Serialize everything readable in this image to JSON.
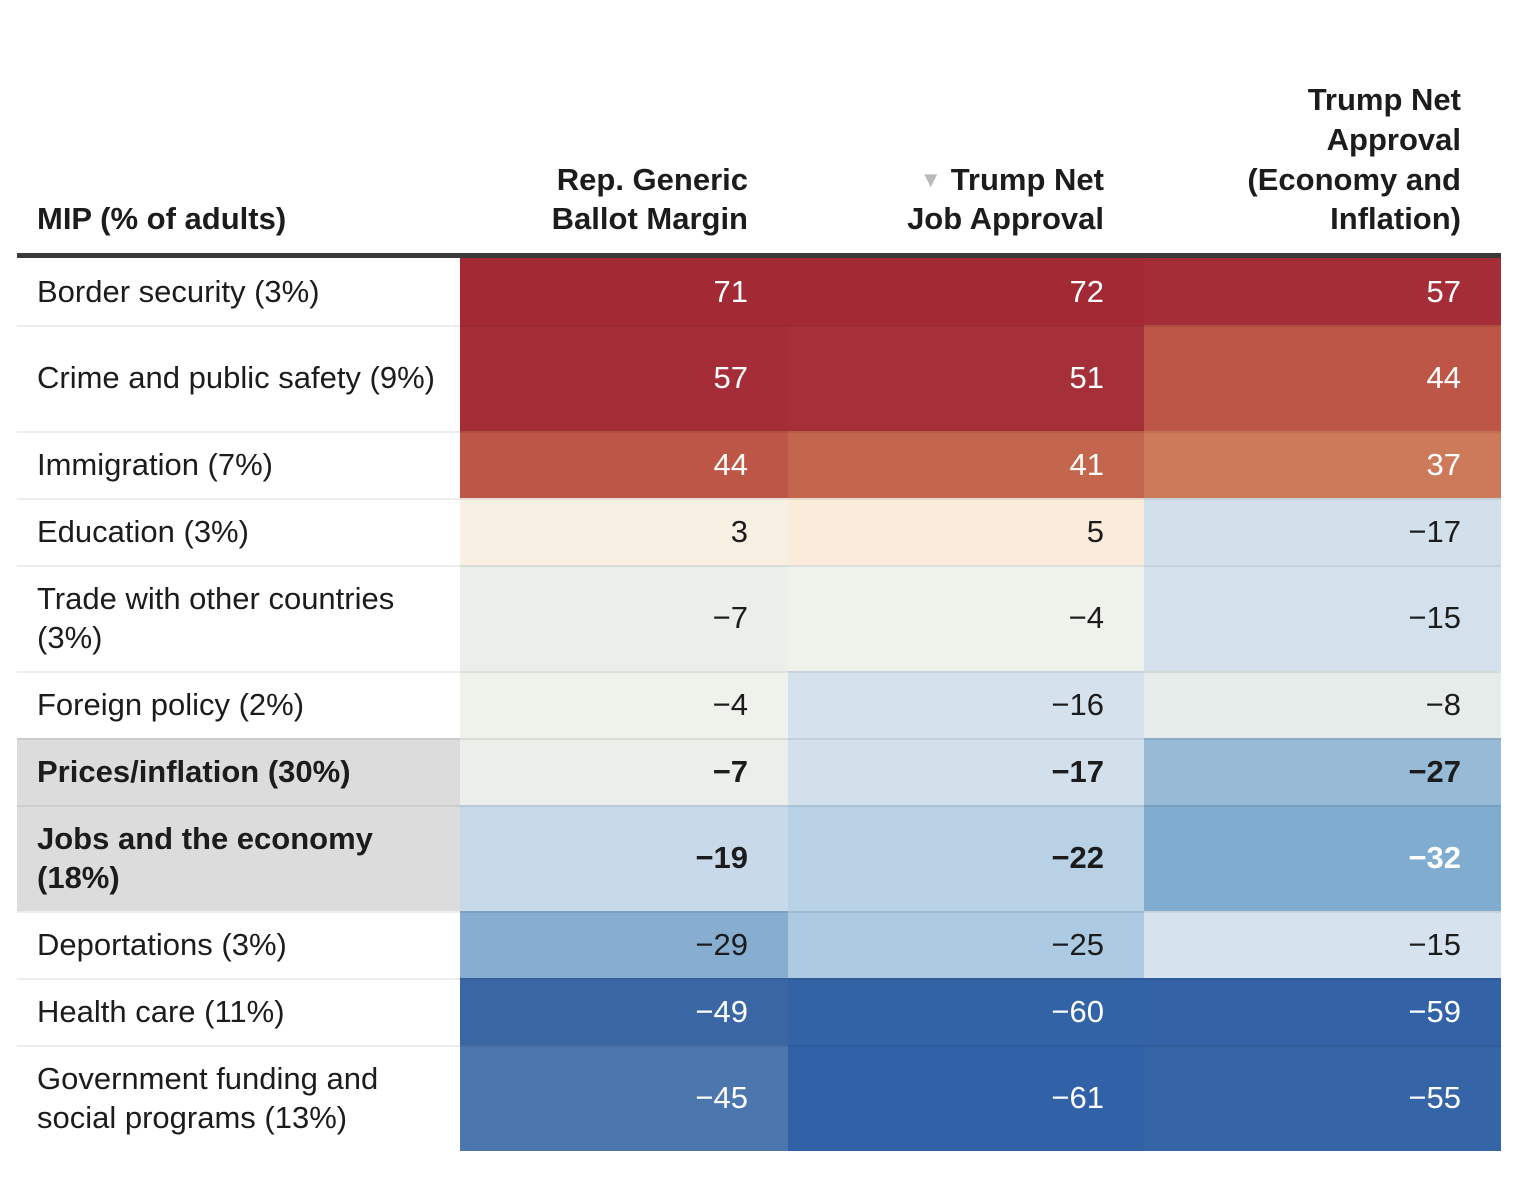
{
  "colors": {
    "header_rule": "#3a3a3a",
    "emphasis_row_bg": "#dcdcdc",
    "sort_icon": "#bbbbbb",
    "positive_max_red": "#a32a35",
    "negative_max_blue": "#3162a8",
    "neutral": "#f2f1ec"
  },
  "chart_data": {
    "type": "heatmap",
    "row_label_header": "MIP (% of adults)",
    "columns": [
      "Rep. Generic Ballot Margin",
      "Trump Net Job Approval",
      "Trump Net Approval (Economy and Inflation)"
    ],
    "rows": [
      "Border security (3%)",
      "Crime and public safety (9%)",
      "Immigration (7%)",
      "Education (3%)",
      "Trade with other countries (3%)",
      "Foreign policy (2%)",
      "Prices/inflation (30%)",
      "Jobs and the economy (18%)",
      "Deportations (3%)",
      "Health care (11%)",
      "Government funding and social programs (13%)"
    ],
    "values": [
      [
        71,
        72,
        57
      ],
      [
        57,
        51,
        44
      ],
      [
        44,
        41,
        37
      ],
      [
        3,
        5,
        -17
      ],
      [
        -7,
        -4,
        -15
      ],
      [
        -4,
        -16,
        -8
      ],
      [
        -7,
        -17,
        -27
      ],
      [
        -19,
        -22,
        -32
      ],
      [
        -29,
        -25,
        -15
      ],
      [
        -49,
        -60,
        -59
      ],
      [
        -45,
        -61,
        -55
      ]
    ],
    "emphasized_rows": [
      "Prices/inflation (30%)",
      "Jobs and the economy (18%)"
    ],
    "sort": "Trump Net Job Approval, descending",
    "colorscale": "diverging red (positive) to blue (negative), white near zero",
    "legend_position": "none",
    "grid": "off"
  },
  "table": {
    "header": {
      "row_label": "MIP (% of adults)",
      "sort_icon_glyph": "▼",
      "col1_lines": [
        "Rep. Generic",
        "Ballot Margin"
      ],
      "col2_lines": [
        "Trump Net",
        "Job Approval"
      ],
      "col3_lines": [
        "Trump Net",
        "Approval",
        "(Economy and",
        "Inflation)"
      ]
    },
    "rows": [
      {
        "label": "Border security (3%)",
        "emphasis": false,
        "cells": [
          {
            "display": "71",
            "bg": "#a32a35",
            "fg": "#ffffff"
          },
          {
            "display": "72",
            "bg": "#a32a35",
            "fg": "#ffffff"
          },
          {
            "display": "57",
            "bg": "#a42d38",
            "fg": "#ffffff"
          }
        ]
      },
      {
        "label": "Crime and public safety (9%)",
        "emphasis": false,
        "cells": [
          {
            "display": "57",
            "bg": "#a42d38",
            "fg": "#ffffff"
          },
          {
            "display": "51",
            "bg": "#a5303a",
            "fg": "#ffffff"
          },
          {
            "display": "44",
            "bg": "#bd5646",
            "fg": "#ffffff"
          }
        ]
      },
      {
        "label": "Immigration (7%)",
        "emphasis": false,
        "cells": [
          {
            "display": "44",
            "bg": "#bd5646",
            "fg": "#ffffff"
          },
          {
            "display": "41",
            "bg": "#c4654d",
            "fg": "#ffffff"
          },
          {
            "display": "37",
            "bg": "#cd7a5b",
            "fg": "#ffffff"
          }
        ]
      },
      {
        "label": "Education (3%)",
        "emphasis": false,
        "cells": [
          {
            "display": "3",
            "bg": "#f9f0e4",
            "fg": "#1c1c1c"
          },
          {
            "display": "5",
            "bg": "#faebdb",
            "fg": "#1c1c1c"
          },
          {
            "display": "−17",
            "bg": "#d2e0eb",
            "fg": "#1c1c1c"
          }
        ]
      },
      {
        "label": "Trade with other countries (3%)",
        "emphasis": false,
        "cells": [
          {
            "display": "−7",
            "bg": "#eaefe9",
            "fg": "#1c1c1c"
          },
          {
            "display": "−4",
            "bg": "#eff1eb",
            "fg": "#1c1c1c"
          },
          {
            "display": "−15",
            "bg": "#d4e1ec",
            "fg": "#1c1c1c"
          }
        ]
      },
      {
        "label": "Foreign policy (2%)",
        "emphasis": false,
        "cells": [
          {
            "display": "−4",
            "bg": "#eff1eb",
            "fg": "#1c1c1c"
          },
          {
            "display": "−16",
            "bg": "#d5e2ed",
            "fg": "#1c1c1c"
          },
          {
            "display": "−8",
            "bg": "#e6ece9",
            "fg": "#1c1c1c"
          }
        ]
      },
      {
        "label": "Prices/inflation (30%)",
        "emphasis": true,
        "cells": [
          {
            "display": "−7",
            "bg": "#eaefe9",
            "fg": "#1c1c1c"
          },
          {
            "display": "−17",
            "bg": "#d2e0eb",
            "fg": "#1c1c1c"
          },
          {
            "display": "−27",
            "bg": "#97bad7",
            "fg": "#1c1c1c"
          }
        ]
      },
      {
        "label": "Jobs and the economy (18%)",
        "emphasis": true,
        "cells": [
          {
            "display": "−19",
            "bg": "#c8dae9",
            "fg": "#1c1c1c"
          },
          {
            "display": "−22",
            "bg": "#b9d1e5",
            "fg": "#1c1c1c"
          },
          {
            "display": "−32",
            "bg": "#80accf",
            "fg": "#ffffff"
          }
        ]
      },
      {
        "label": "Deportations (3%)",
        "emphasis": false,
        "cells": [
          {
            "display": "−29",
            "bg": "#87aed1",
            "fg": "#1c1c1c"
          },
          {
            "display": "−25",
            "bg": "#accae1",
            "fg": "#1c1c1c"
          },
          {
            "display": "−15",
            "bg": "#d6e3ee",
            "fg": "#1c1c1c"
          }
        ]
      },
      {
        "label": "Health care (11%)",
        "emphasis": false,
        "cells": [
          {
            "display": "−49",
            "bg": "#3a67a4",
            "fg": "#ffffff"
          },
          {
            "display": "−60",
            "bg": "#3263a7",
            "fg": "#ffffff"
          },
          {
            "display": "−59",
            "bg": "#3363a6",
            "fg": "#ffffff"
          }
        ]
      },
      {
        "label": "Government funding and social programs (13%)",
        "emphasis": false,
        "cells": [
          {
            "display": "−45",
            "bg": "#4c76ae",
            "fg": "#ffffff"
          },
          {
            "display": "−61",
            "bg": "#3162a8",
            "fg": "#ffffff"
          },
          {
            "display": "−55",
            "bg": "#3564a7",
            "fg": "#ffffff"
          }
        ]
      }
    ]
  }
}
